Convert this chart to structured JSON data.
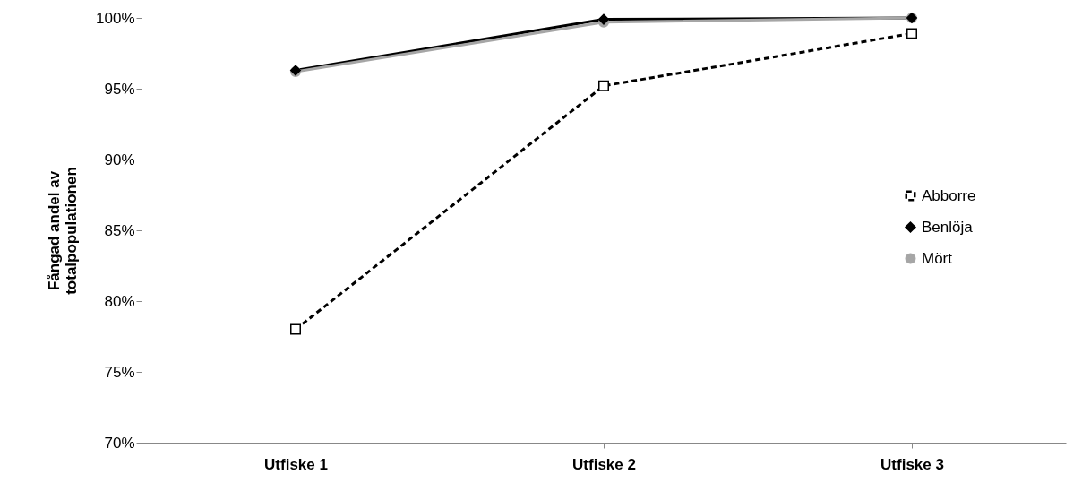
{
  "chart_data": {
    "type": "line",
    "ylabel": "Fångad andel av totalpopulationen",
    "categories": [
      "Utfiske 1",
      "Utfiske 2",
      "Utfiske 3"
    ],
    "series": [
      {
        "name": "Abborre",
        "color": "#000000",
        "marker": "square",
        "line_style": "dashed",
        "values": [
          78.0,
          95.2,
          98.9
        ]
      },
      {
        "name": "Benlöja",
        "color": "#000000",
        "marker": "diamond",
        "line_style": "solid",
        "values": [
          96.3,
          99.9,
          100
        ]
      },
      {
        "name": "Mört",
        "color": "#a6a6a6",
        "marker": "circle",
        "line_style": "solid",
        "values": [
          96.2,
          99.7,
          100
        ]
      }
    ],
    "ylim": [
      70,
      100
    ],
    "yticks": [
      {
        "value": 70,
        "label": "70%"
      },
      {
        "value": 75,
        "label": "75%"
      },
      {
        "value": 80,
        "label": "80%"
      },
      {
        "value": 85,
        "label": "85%"
      },
      {
        "value": 90,
        "label": "90%"
      },
      {
        "value": 95,
        "label": "95%"
      },
      {
        "value": 100,
        "label": "100%"
      }
    ],
    "grid": false,
    "legend": "right"
  }
}
